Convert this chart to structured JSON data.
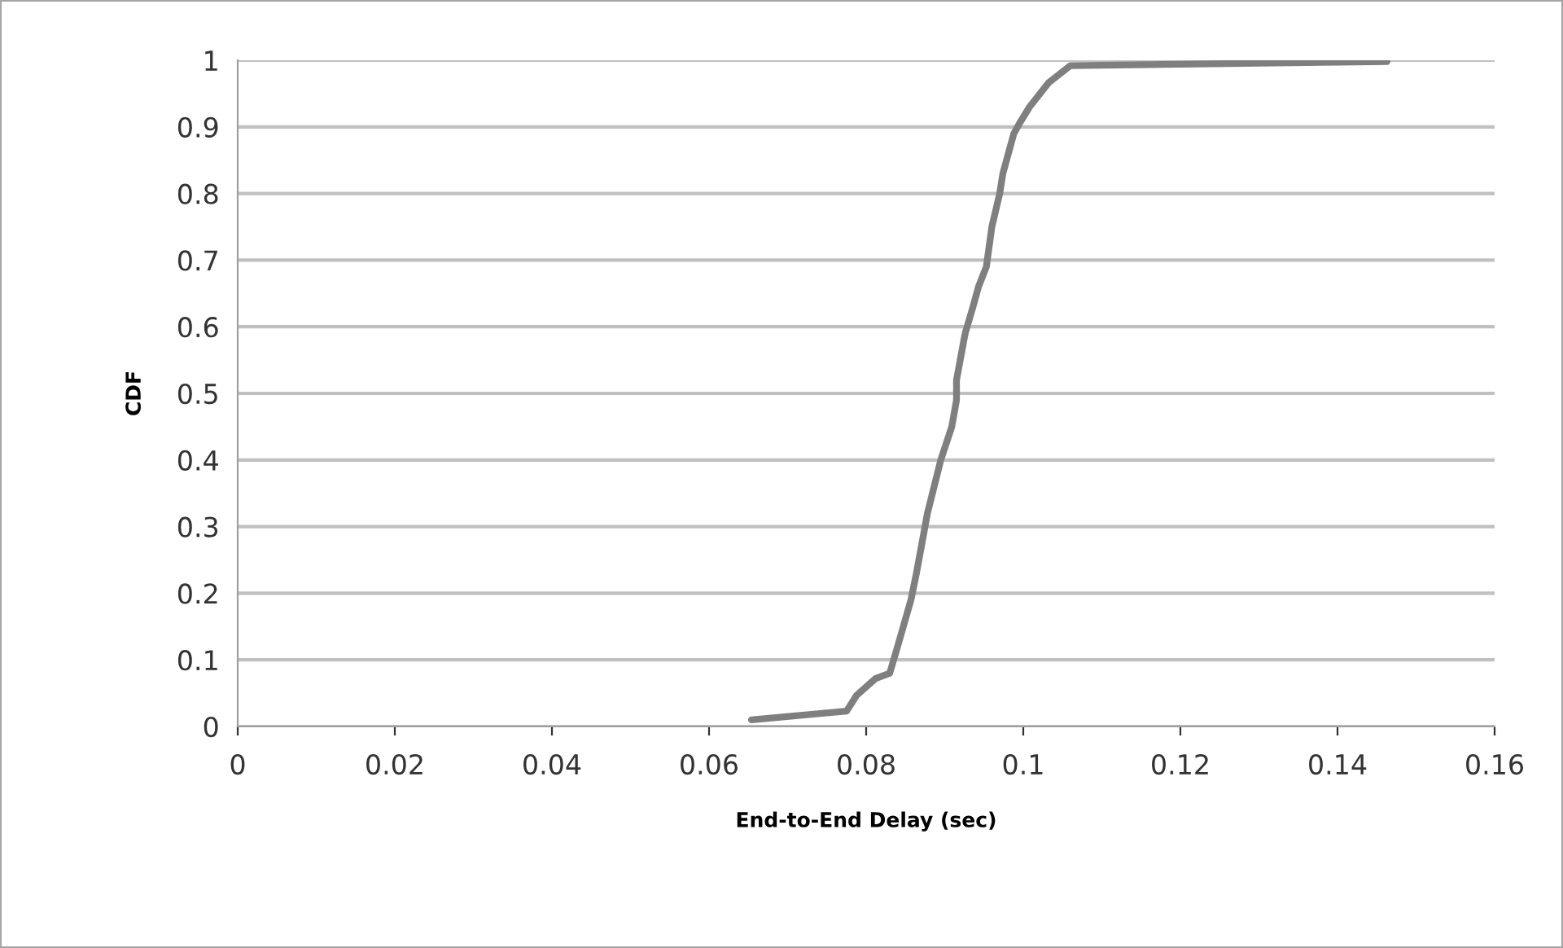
{
  "chart_data": {
    "type": "line",
    "xlabel": "End-to-End Delay (sec)",
    "ylabel": "CDF",
    "xlim": [
      0,
      0.16
    ],
    "xticks": [
      0,
      0.02,
      0.04,
      0.06,
      0.08,
      0.1,
      0.12,
      0.14,
      0.16
    ],
    "ylim": [
      0,
      1
    ],
    "yticks": [
      0,
      0.1,
      0.2,
      0.3,
      0.4,
      0.5,
      0.6,
      0.7,
      0.8,
      0.9,
      1
    ],
    "grid": "y",
    "legend": false,
    "marker": "none",
    "line_style": "solid",
    "series": [
      {
        "color": "#7f7f7f",
        "x": [
          0.0654,
          0.0775,
          0.0788,
          0.0812,
          0.083,
          0.084,
          0.0857,
          0.0864,
          0.0878,
          0.0895,
          0.0909,
          0.0915,
          0.0915,
          0.0926,
          0.0936,
          0.0943,
          0.0953,
          0.096,
          0.097,
          0.0974,
          0.0988,
          0.0995,
          0.1008,
          0.1032,
          0.106,
          0.1463
        ],
        "values": [
          0.01,
          0.023,
          0.047,
          0.072,
          0.08,
          0.12,
          0.19,
          0.23,
          0.32,
          0.4,
          0.45,
          0.49,
          0.52,
          0.59,
          0.63,
          0.66,
          0.69,
          0.75,
          0.8,
          0.83,
          0.89,
          0.905,
          0.93,
          0.966,
          0.992,
          0.998
        ]
      }
    ]
  }
}
